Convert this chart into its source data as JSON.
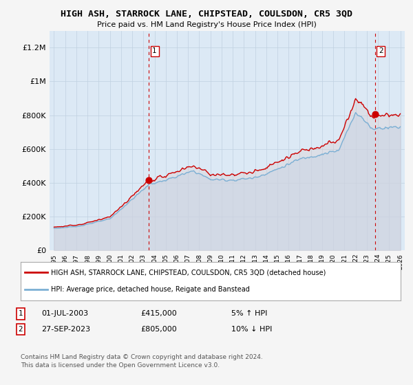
{
  "title": "HIGH ASH, STARROCK LANE, CHIPSTEAD, COULSDON, CR5 3QD",
  "subtitle": "Price paid vs. HM Land Registry's House Price Index (HPI)",
  "ylim": [
    0,
    1300000
  ],
  "yticks": [
    0,
    200000,
    400000,
    600000,
    800000,
    1000000,
    1200000
  ],
  "ytick_labels": [
    "£0",
    "£200K",
    "£400K",
    "£600K",
    "£800K",
    "£1M",
    "£1.2M"
  ],
  "xlim_start": 1994.6,
  "xlim_end": 2026.4,
  "sale1_year": 2003.5,
  "sale1_price": 415000,
  "sale2_year": 2023.75,
  "sale2_price": 805000,
  "legend_line1": "HIGH ASH, STARROCK LANE, CHIPSTEAD, COULSDON, CR5 3QD (detached house)",
  "legend_line2": "HPI: Average price, detached house, Reigate and Banstead",
  "annotation1_date": "01-JUL-2003",
  "annotation1_price": "£415,000",
  "annotation1_hpi": "5% ↑ HPI",
  "annotation2_date": "27-SEP-2023",
  "annotation2_price": "£805,000",
  "annotation2_hpi": "10% ↓ HPI",
  "footer1": "Contains HM Land Registry data © Crown copyright and database right 2024.",
  "footer2": "This data is licensed under the Open Government Licence v3.0.",
  "hpi_color": "#7bafd4",
  "price_color": "#cc0000",
  "sale_dot_color": "#cc0000",
  "vline_color": "#cc0000",
  "plot_bg_color": "#dce9f5",
  "background_color": "#f5f5f5",
  "grid_color": "#c0d0e0"
}
